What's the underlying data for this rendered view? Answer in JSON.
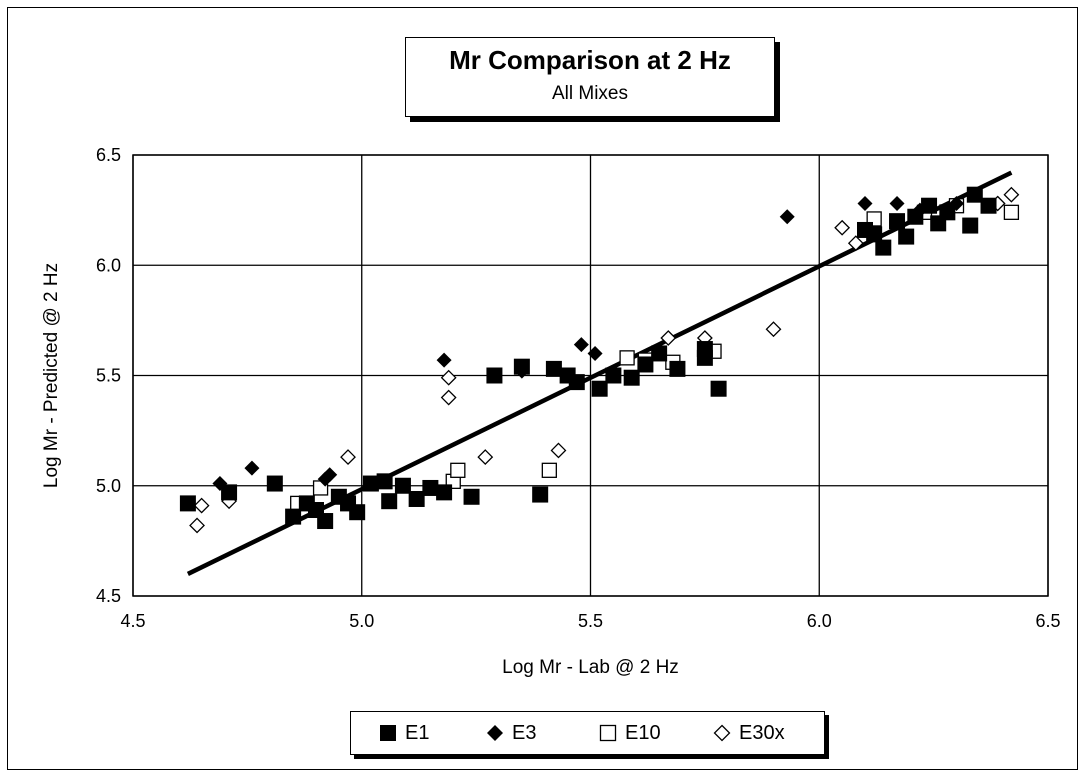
{
  "chart_data": {
    "type": "scatter",
    "title": "Mr Comparison at 2 Hz",
    "subtitle": "All Mixes",
    "xlabel": "Log Mr - Lab @ 2 Hz",
    "ylabel": "Log Mr - Predicted @ 2 Hz",
    "xlim": [
      4.5,
      6.5
    ],
    "ylim": [
      4.5,
      6.5
    ],
    "x_ticks": [
      "4.5",
      "5.0",
      "5.5",
      "6.0",
      "6.5"
    ],
    "y_ticks": [
      "4.5",
      "5.0",
      "5.5",
      "6.0",
      "6.5"
    ],
    "grid": true,
    "legend_position": "bottom",
    "trendline": {
      "x": [
        4.62,
        6.42
      ],
      "y": [
        4.6,
        6.42
      ]
    },
    "series": [
      {
        "name": "E1",
        "marker": "square-filled",
        "points": [
          [
            4.62,
            4.92
          ],
          [
            4.71,
            4.97
          ],
          [
            4.81,
            5.01
          ],
          [
            4.85,
            4.86
          ],
          [
            4.88,
            4.92
          ],
          [
            4.9,
            4.89
          ],
          [
            4.92,
            4.84
          ],
          [
            4.95,
            4.95
          ],
          [
            4.97,
            4.92
          ],
          [
            4.99,
            4.88
          ],
          [
            5.02,
            5.01
          ],
          [
            5.05,
            5.02
          ],
          [
            5.06,
            4.93
          ],
          [
            5.09,
            5.0
          ],
          [
            5.12,
            4.94
          ],
          [
            5.15,
            4.99
          ],
          [
            5.18,
            4.97
          ],
          [
            5.24,
            4.95
          ],
          [
            5.29,
            5.5
          ],
          [
            5.35,
            5.54
          ],
          [
            5.39,
            4.96
          ],
          [
            5.42,
            5.53
          ],
          [
            5.45,
            5.5
          ],
          [
            5.47,
            5.47
          ],
          [
            5.52,
            5.44
          ],
          [
            5.55,
            5.5
          ],
          [
            5.59,
            5.49
          ],
          [
            5.62,
            5.55
          ],
          [
            5.65,
            5.6
          ],
          [
            5.69,
            5.53
          ],
          [
            5.75,
            5.58
          ],
          [
            5.75,
            5.62
          ],
          [
            5.78,
            5.44
          ],
          [
            6.1,
            6.16
          ],
          [
            6.12,
            6.14
          ],
          [
            6.14,
            6.08
          ],
          [
            6.17,
            6.2
          ],
          [
            6.19,
            6.13
          ],
          [
            6.21,
            6.22
          ],
          [
            6.24,
            6.27
          ],
          [
            6.26,
            6.19
          ],
          [
            6.28,
            6.24
          ],
          [
            6.33,
            6.18
          ],
          [
            6.34,
            6.32
          ],
          [
            6.37,
            6.27
          ]
        ]
      },
      {
        "name": "E3",
        "marker": "diamond-filled",
        "points": [
          [
            4.69,
            5.01
          ],
          [
            4.76,
            5.08
          ],
          [
            4.92,
            5.03
          ],
          [
            4.93,
            5.05
          ],
          [
            5.18,
            5.57
          ],
          [
            5.35,
            5.52
          ],
          [
            5.48,
            5.64
          ],
          [
            5.51,
            5.6
          ],
          [
            5.93,
            6.22
          ],
          [
            6.1,
            6.28
          ],
          [
            6.17,
            6.28
          ],
          [
            6.22,
            6.25
          ],
          [
            6.3,
            6.28
          ]
        ]
      },
      {
        "name": "E10",
        "marker": "square-open",
        "points": [
          [
            4.86,
            4.92
          ],
          [
            4.91,
            4.99
          ],
          [
            5.2,
            5.02
          ],
          [
            5.21,
            5.07
          ],
          [
            5.41,
            5.07
          ],
          [
            5.58,
            5.58
          ],
          [
            5.62,
            5.57
          ],
          [
            5.68,
            5.56
          ],
          [
            5.77,
            5.61
          ],
          [
            6.12,
            6.21
          ],
          [
            6.23,
            6.24
          ],
          [
            6.3,
            6.27
          ],
          [
            6.42,
            6.24
          ]
        ]
      },
      {
        "name": "E30x",
        "marker": "diamond-open",
        "points": [
          [
            4.64,
            4.82
          ],
          [
            4.65,
            4.91
          ],
          [
            4.71,
            4.93
          ],
          [
            4.97,
            5.13
          ],
          [
            5.19,
            5.49
          ],
          [
            5.19,
            5.4
          ],
          [
            5.27,
            5.13
          ],
          [
            5.43,
            5.16
          ],
          [
            5.67,
            5.67
          ],
          [
            5.75,
            5.67
          ],
          [
            5.9,
            5.71
          ],
          [
            6.05,
            6.17
          ],
          [
            6.08,
            6.1
          ],
          [
            6.39,
            6.28
          ],
          [
            6.42,
            6.32
          ]
        ]
      }
    ]
  }
}
